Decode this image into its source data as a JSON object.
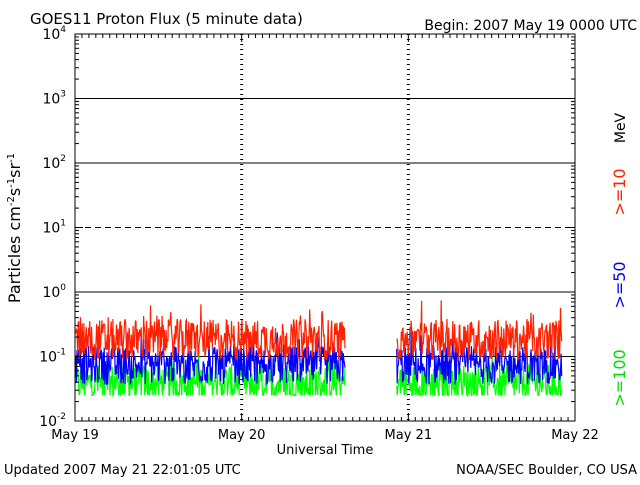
{
  "chart_data": {
    "type": "line",
    "title": "GOES11 Proton Flux (5 minute data)",
    "begin": "Begin: 2007 May 19 0000 UTC",
    "xlabel": "Universal Time",
    "ylabel_main": "Particles cm",
    "ylabel_sup1": "-2",
    "ylabel_mid1": "s",
    "ylabel_sup2": "-1",
    "ylabel_mid2": "sr",
    "ylabel_sup3": "-1",
    "updated": "Updated 2007 May 21 22:01:05 UTC",
    "credit": "NOAA/SEC Boulder, CO USA",
    "y_scale": "log",
    "ylim": [
      0.01,
      10000
    ],
    "y_ticks": [
      {
        "base": "10",
        "exp": "-2",
        "value": 0.01
      },
      {
        "base": "10",
        "exp": "-1",
        "value": 0.1
      },
      {
        "base": "10",
        "exp": "0",
        "value": 1
      },
      {
        "base": "10",
        "exp": "1",
        "value": 10
      },
      {
        "base": "10",
        "exp": "2",
        "value": 100
      },
      {
        "base": "10",
        "exp": "3",
        "value": 1000
      },
      {
        "base": "10",
        "exp": "4",
        "value": 10000
      }
    ],
    "hlines": [
      {
        "value": 1000,
        "style": "solid"
      },
      {
        "value": 100,
        "style": "solid"
      },
      {
        "value": 10,
        "style": "dashed"
      },
      {
        "value": 1,
        "style": "solid"
      },
      {
        "value": 0.1,
        "style": "solid"
      }
    ],
    "x_ticks": [
      "May 19",
      "May 20",
      "May 21",
      "May 22"
    ],
    "x_range_days": [
      0,
      3
    ],
    "gap_days": [
      1.62,
      1.93
    ],
    "units_label": "MeV",
    "series": [
      {
        "name": ">=10",
        "color": "#ff2000",
        "mean": 0.17,
        "spread": 0.32
      },
      {
        "name": ">=50",
        "color": "#0000ff",
        "mean": 0.068,
        "spread": 0.3
      },
      {
        "name": ">=100",
        "color": "#00ff00",
        "mean": 0.036,
        "spread": 0.3
      }
    ]
  }
}
